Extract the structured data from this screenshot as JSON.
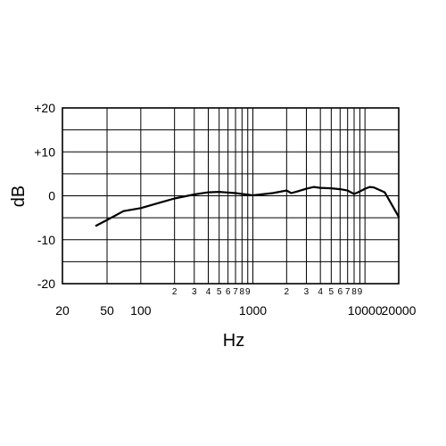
{
  "chart_data": {
    "type": "line",
    "xscale": "log",
    "xlim": [
      20,
      20000
    ],
    "ylim": [
      -20,
      20
    ],
    "xlabel": "Hz",
    "ylabel": "dB",
    "grid": true,
    "y_ticks": [
      {
        "value": 20,
        "label": "+20"
      },
      {
        "value": 10,
        "label": "+10"
      },
      {
        "value": 0,
        "label": "0"
      },
      {
        "value": -10,
        "label": "-10"
      },
      {
        "value": -20,
        "label": "-20"
      }
    ],
    "x_major_ticks": [
      {
        "value": 20,
        "label": "20"
      },
      {
        "value": 50,
        "label": "50"
      },
      {
        "value": 100,
        "label": "100"
      },
      {
        "value": 1000,
        "label": "1000"
      },
      {
        "value": 10000,
        "label": "10000"
      },
      {
        "value": 20000,
        "label": "20000"
      }
    ],
    "x_minor_ticks": [
      {
        "value": 200,
        "label": "2"
      },
      {
        "value": 300,
        "label": "3"
      },
      {
        "value": 400,
        "label": "4"
      },
      {
        "value": 500,
        "label": "5"
      },
      {
        "value": 600,
        "label": "6"
      },
      {
        "value": 700,
        "label": "7"
      },
      {
        "value": 800,
        "label": "8"
      },
      {
        "value": 900,
        "label": "9"
      },
      {
        "value": 2000,
        "label": "2"
      },
      {
        "value": 3000,
        "label": "3"
      },
      {
        "value": 4000,
        "label": "4"
      },
      {
        "value": 5000,
        "label": "5"
      },
      {
        "value": 6000,
        "label": "6"
      },
      {
        "value": 7000,
        "label": "7"
      },
      {
        "value": 8000,
        "label": "8"
      },
      {
        "value": 9000,
        "label": "9"
      }
    ],
    "grid_x": [
      20,
      50,
      100,
      200,
      300,
      400,
      500,
      600,
      700,
      800,
      900,
      1000,
      2000,
      3000,
      4000,
      5000,
      6000,
      7000,
      8000,
      9000,
      10000,
      20000
    ],
    "grid_y": [
      -20,
      -15,
      -10,
      -5,
      0,
      5,
      10,
      15,
      20
    ],
    "series": [
      {
        "x": [
          40,
          50,
          70,
          100,
          150,
          200,
          300,
          400,
          500,
          700,
          1000,
          1500,
          2000,
          2200,
          2500,
          3000,
          3500,
          4000,
          5000,
          6000,
          7000,
          8000,
          9000,
          10000,
          11000,
          12000,
          15000,
          20000
        ],
        "y": [
          -6.8,
          -5.5,
          -3.5,
          -2.8,
          -1.5,
          -0.6,
          0.3,
          0.8,
          0.9,
          0.6,
          0.1,
          0.6,
          1.2,
          0.6,
          1.0,
          1.6,
          2.0,
          1.8,
          1.7,
          1.5,
          1.2,
          0.4,
          1.0,
          1.6,
          2.0,
          1.9,
          0.8,
          -4.8
        ]
      }
    ]
  }
}
